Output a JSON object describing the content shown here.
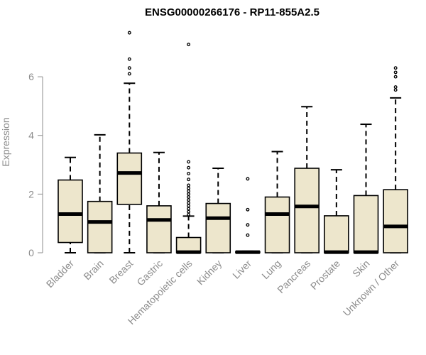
{
  "chart_data": {
    "type": "boxplot",
    "title": "ENSG00000266176 - RP11-855A2.5",
    "xlabel": "",
    "ylabel": "Expression",
    "ylim": [
      0,
      7.6
    ],
    "yticks": [
      0,
      2,
      4,
      6
    ],
    "grid": false,
    "legend": "none",
    "box_fill": "#ede6cc",
    "box_stroke": "#000000",
    "axis_color": "#8c8c8c",
    "categories": [
      "Bladder",
      "Brain",
      "Breast",
      "Gastric",
      "Hematopoietic cells",
      "Kidney",
      "Liver",
      "Lung",
      "Pancreas",
      "Prostate",
      "Skin",
      "Unknown / Other"
    ],
    "boxes": [
      {
        "whisker_low": 0.0,
        "q1": 0.35,
        "median": 1.32,
        "q3": 2.48,
        "whisker_high": 3.25,
        "outliers": []
      },
      {
        "whisker_low": 0.0,
        "q1": 0.0,
        "median": 1.05,
        "q3": 1.75,
        "whisker_high": 4.02,
        "outliers": []
      },
      {
        "whisker_low": 0.0,
        "q1": 1.65,
        "median": 2.72,
        "q3": 3.4,
        "whisker_high": 5.78,
        "outliers": [
          6.1,
          6.3,
          6.6,
          7.5
        ]
      },
      {
        "whisker_low": 0.0,
        "q1": 0.0,
        "median": 1.12,
        "q3": 1.6,
        "whisker_high": 3.42,
        "outliers": []
      },
      {
        "whisker_low": 0.0,
        "q1": 0.0,
        "median": 0.02,
        "q3": 0.52,
        "whisker_high": 1.25,
        "outliers": [
          1.3,
          1.4,
          1.5,
          1.6,
          1.7,
          1.8,
          1.9,
          2.0,
          2.1,
          2.2,
          2.3,
          2.5,
          2.7,
          2.9,
          3.1,
          7.1
        ]
      },
      {
        "whisker_low": 0.0,
        "q1": 0.0,
        "median": 1.18,
        "q3": 1.68,
        "whisker_high": 2.88,
        "outliers": []
      },
      {
        "whisker_low": 0.0,
        "q1": 0.0,
        "median": 0.02,
        "q3": 0.04,
        "whisker_high": 0.05,
        "outliers": [
          0.6,
          0.95,
          1.47,
          2.52
        ]
      },
      {
        "whisker_low": 0.0,
        "q1": 0.0,
        "median": 1.32,
        "q3": 1.9,
        "whisker_high": 3.45,
        "outliers": []
      },
      {
        "whisker_low": 0.0,
        "q1": 0.0,
        "median": 1.58,
        "q3": 2.88,
        "whisker_high": 4.98,
        "outliers": []
      },
      {
        "whisker_low": 0.0,
        "q1": 0.0,
        "median": 0.02,
        "q3": 1.26,
        "whisker_high": 2.83,
        "outliers": []
      },
      {
        "whisker_low": 0.0,
        "q1": 0.0,
        "median": 0.02,
        "q3": 1.95,
        "whisker_high": 4.38,
        "outliers": []
      },
      {
        "whisker_low": 0.0,
        "q1": 0.0,
        "median": 0.9,
        "q3": 2.15,
        "whisker_high": 5.28,
        "outliers": [
          5.55,
          5.65,
          6.0,
          6.15,
          6.3
        ]
      }
    ]
  }
}
